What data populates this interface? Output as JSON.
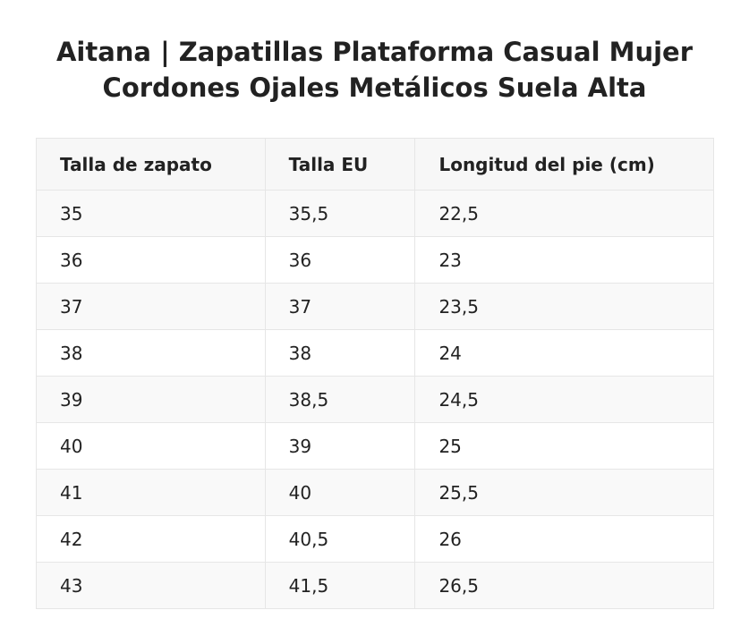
{
  "title": {
    "line1": "Aitana | Zapatillas Plataforma Casual Mujer",
    "line2": "Cordones Ojales Metálicos Suela Alta"
  },
  "table": {
    "headers": [
      "Talla de zapato",
      "Talla EU",
      "Longitud del pie (cm)"
    ],
    "rows": [
      [
        "35",
        "35,5",
        "22,5"
      ],
      [
        "36",
        "36",
        "23"
      ],
      [
        "37",
        "37",
        "23,5"
      ],
      [
        "38",
        "38",
        "24"
      ],
      [
        "39",
        "38,5",
        "24,5"
      ],
      [
        "40",
        "39",
        "25"
      ],
      [
        "41",
        "40",
        "25,5"
      ],
      [
        "42",
        "40,5",
        "26"
      ],
      [
        "43",
        "41,5",
        "26,5"
      ]
    ]
  }
}
